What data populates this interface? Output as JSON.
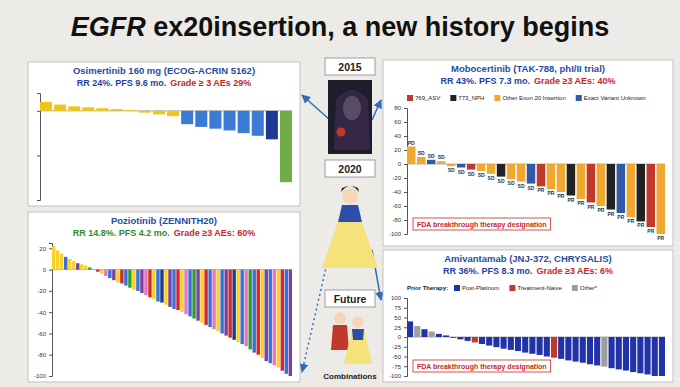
{
  "slide": {
    "title_parts": [
      "EGFR",
      " ex20insertion, a new history begins"
    ],
    "timeline": [
      "2015",
      "2020",
      "Future"
    ],
    "footer": "Combinations"
  },
  "chart_data": [
    {
      "type": "bar",
      "title": "Osimertinib 160 mg (ECOG-ACRIN 5162)",
      "subtitle": "RR 24%. PFS 9.6 mo.",
      "adverse_events": "Grade ≥ 3 AEs 29%",
      "values": [
        10,
        7,
        5,
        4,
        3,
        2,
        1,
        -2,
        -4,
        -6,
        -15,
        -18,
        -20,
        -22,
        -25,
        -28,
        -32,
        -80
      ],
      "colors": [
        "#f0c419",
        "#f0c419",
        "#f0c419",
        "#f0c419",
        "#f0c419",
        "#f0c419",
        "#f0c419",
        "#f0c419",
        "#f0c419",
        "#f0c419",
        "#3a7bd5",
        "#3a7bd5",
        "#3a7bd5",
        "#3a7bd5",
        "#3a7bd5",
        "#3a7bd5",
        "#1f3a93",
        "#70ad47"
      ],
      "ylim": [
        -100,
        20
      ],
      "yticks": [
        -100,
        -50,
        0
      ],
      "tick_labels": false
    },
    {
      "type": "bar",
      "title": "Poziotinib (ZENNITH20)",
      "subtitle": "RR 14.8%. PFS 4.2 mo.",
      "adverse_events": "Grade ≥3 AEs: 60%",
      "values": [
        22,
        18,
        15,
        12,
        10,
        8,
        6,
        5,
        4,
        2,
        0,
        -2,
        -4,
        -6,
        -8,
        -10,
        -12,
        -13,
        -15,
        -17,
        -19,
        -20,
        -22,
        -24,
        -26,
        -28,
        -30,
        -31,
        -33,
        -35,
        -37,
        -38,
        -40,
        -42,
        -44,
        -46,
        -48,
        -50,
        -52,
        -54,
        -56,
        -58,
        -60,
        -62,
        -64,
        -66,
        -68,
        -70,
        -72,
        -75,
        -78,
        -80,
        -83,
        -86,
        -88,
        -90,
        -92,
        -95,
        -98,
        -100
      ],
      "colors": [
        "#f5d327",
        "#f5d327",
        "#f5d327",
        "#3b6fd4",
        "#f5d327",
        "#f5d327",
        "#7b3fa0",
        "#f5d327",
        "#f5d327",
        "#2ca02c",
        "#3b6fd4",
        "#d62728",
        "#f5d327",
        "#e377c2",
        "#3b6fd4",
        "#7b3fa0",
        "#f5d327",
        "#d62728",
        "#3b6fd4",
        "#2ca02c",
        "#f5d327",
        "#3b6fd4",
        "#7b3fa0",
        "#e377c2",
        "#d62728",
        "#f5d327",
        "#3b6fd4",
        "#1f3a93",
        "#f5d327",
        "#7b3fa0",
        "#3b6fd4",
        "#d62728",
        "#f5d327",
        "#e377c2",
        "#3b6fd4",
        "#2ca02c",
        "#7b3fa0",
        "#f5d327",
        "#d62728",
        "#3b6fd4",
        "#e377c2",
        "#f5d327",
        "#3b6fd4",
        "#7b3fa0",
        "#d62728",
        "#1f3a93",
        "#f5d327",
        "#3b6fd4",
        "#e377c2",
        "#2ca02c",
        "#3b6fd4",
        "#d62728",
        "#f5d327",
        "#7b3fa0",
        "#3b6fd4",
        "#e377c2",
        "#f5d327",
        "#d62728",
        "#3b6fd4",
        "#7b3fa0"
      ],
      "ylim": [
        -100,
        25
      ],
      "yticks": [
        20,
        0,
        -20,
        -40,
        -60,
        -80,
        -100
      ]
    },
    {
      "type": "bar",
      "title": "Mobocertinib (TAK-788, phI/II trial)",
      "subtitle": "RR 43%. PFS 7.3 mo.",
      "adverse_events": "Grade ≥3 AEs: 40%",
      "designation": "FDA breakthrough therapy designation",
      "legend": "top",
      "series": [
        {
          "name": "769_ASV",
          "color": "#c0392b",
          "values": [
            null,
            null,
            null,
            null,
            null,
            null,
            -8,
            null,
            null,
            null,
            null,
            null,
            null,
            -32,
            null,
            null,
            null,
            null,
            -55,
            null,
            null,
            null,
            null,
            null,
            -90,
            null
          ]
        },
        {
          "name": "773_NPH",
          "color": "#222222",
          "values": [
            null,
            null,
            null,
            null,
            null,
            null,
            null,
            null,
            null,
            -18,
            null,
            null,
            null,
            null,
            null,
            null,
            -45,
            null,
            null,
            null,
            -65,
            null,
            null,
            -82,
            null,
            null
          ]
        },
        {
          "name": "Other Exon 20 Insertion",
          "color": "#f0a830",
          "values": [
            25,
            10,
            null,
            4,
            -3,
            null,
            null,
            -10,
            -14,
            null,
            -22,
            -25,
            null,
            null,
            -36,
            -40,
            null,
            -50,
            null,
            -60,
            null,
            null,
            -76,
            null,
            null,
            -100
          ]
        },
        {
          "name": "Exact Variant Unknown",
          "color": "#2f5aa8",
          "values": [
            null,
            null,
            6,
            null,
            null,
            -5,
            null,
            null,
            null,
            null,
            null,
            null,
            -28,
            null,
            null,
            null,
            null,
            null,
            null,
            null,
            null,
            -70,
            null,
            null,
            null,
            null
          ]
        }
      ],
      "response": [
        "PD",
        "SD",
        "SD",
        "SD",
        "SD",
        "SD",
        "SD",
        "SD",
        "SD",
        "SD",
        "SD",
        "SD",
        "SD",
        "PR",
        "PR",
        "PR",
        "PR",
        "PR",
        "PR",
        "PR",
        "PR",
        "PR",
        "PR",
        "PR",
        "PR",
        "PR"
      ],
      "ylim": [
        -100,
        80
      ],
      "yticks": [
        80,
        60,
        40,
        20,
        0,
        -20,
        -40,
        -60,
        -80,
        -100
      ]
    },
    {
      "type": "bar",
      "title": "Amivantamab (JNJ-372, CHRYSALIS)",
      "subtitle": "RR 36%. PFS 8.3 mo.",
      "adverse_events": "Grade ≥3 AEs: 6%",
      "designation": "FDA breakthrough therapy designation",
      "legend": "top",
      "legend_title": "Prior Therapy:",
      "series": [
        {
          "name": "Post-Platinum",
          "color": "#2233a8",
          "values": [
            40,
            null,
            20,
            null,
            8,
            4,
            -2,
            -6,
            -10,
            null,
            -18,
            -22,
            -26,
            -30,
            -33,
            -36,
            -40,
            -43,
            -46,
            -50,
            null,
            -56,
            -60,
            -63,
            -66,
            -70,
            -73,
            null,
            -80,
            -83,
            -86,
            -90,
            -93,
            -96,
            -100,
            -100
          ]
        },
        {
          "name": "Treatment-Naive",
          "color": "#c0392b",
          "values": [
            null,
            null,
            null,
            null,
            null,
            null,
            null,
            null,
            null,
            -14,
            null,
            null,
            null,
            null,
            null,
            null,
            null,
            null,
            null,
            null,
            -53,
            null,
            null,
            null,
            null,
            null,
            null,
            null,
            null,
            null,
            null,
            null,
            null,
            null,
            null,
            null
          ]
        },
        {
          "name": "Other*",
          "color": "#9e9e9e",
          "values": [
            null,
            28,
            null,
            14,
            null,
            null,
            null,
            null,
            null,
            null,
            null,
            null,
            null,
            null,
            null,
            null,
            null,
            null,
            null,
            null,
            null,
            null,
            null,
            null,
            null,
            null,
            null,
            -76,
            null,
            null,
            null,
            null,
            null,
            null,
            null,
            null
          ]
        }
      ],
      "ylim": [
        -100,
        100
      ],
      "yticks": [
        100,
        75,
        50,
        25,
        0,
        -25,
        -50,
        -75,
        -100
      ]
    }
  ]
}
